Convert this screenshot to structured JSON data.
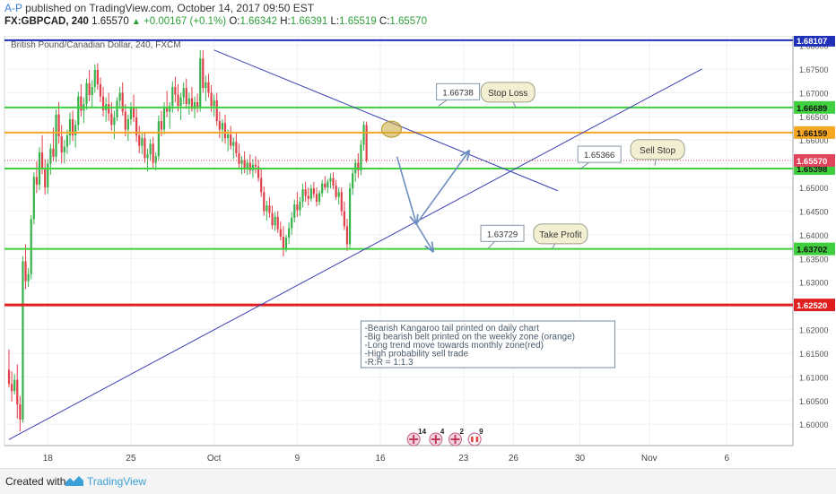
{
  "header": {
    "author": "A-P",
    "published": "published on TradingView.com, October 14, 2017 09:50 EST",
    "symbol": "FX:GBPCAD, 240",
    "last": "1.65570",
    "change_arrow": "▲",
    "change": "+0.00167 (+0.1%)",
    "o_label": "O:",
    "o_value": "1.66342",
    "h_label": "H:",
    "h_value": "1.66391",
    "l_label": "L:",
    "l_value": "1.65519",
    "c_label": "C:",
    "c_value": "1.65570"
  },
  "footer": {
    "created_with": "Created with",
    "brand": "TradingView"
  },
  "chart_data": {
    "type": "candlestick",
    "title": "British Pound/Canadian Dollar, 240, FXCM",
    "ylim": [
      1.5955,
      1.682
    ],
    "y_ticks": [
      "1.60000",
      "1.60500",
      "1.61000",
      "1.61500",
      "1.62000",
      "1.62500",
      "1.63000",
      "1.63500",
      "1.64000",
      "1.64500",
      "1.65000",
      "1.65500",
      "1.66000",
      "1.66500",
      "1.67000",
      "1.67500",
      "1.68000"
    ],
    "x_ticks": [
      {
        "label": "18",
        "i": 14
      },
      {
        "label": "25",
        "i": 44
      },
      {
        "label": "Oct",
        "i": 74
      },
      {
        "label": "9",
        "i": 104
      },
      {
        "label": "16",
        "i": 134
      },
      {
        "label": "23",
        "i": 164
      },
      {
        "label": "26",
        "i": 182
      },
      {
        "label": "30",
        "i": 206
      },
      {
        "label": "Nov",
        "i": 231
      },
      {
        "label": "6",
        "i": 259
      }
    ],
    "horizontal_levels": [
      {
        "price": 1.68107,
        "label": "1.68107",
        "color": "#1f2fb8",
        "width": 2
      },
      {
        "price": 1.66689,
        "label": "1.66689",
        "color": "#3fcf3f",
        "width": 2
      },
      {
        "price": 1.66159,
        "label": "1.66159",
        "color": "#f5a623",
        "width": 2
      },
      {
        "price": 1.65398,
        "label": "1.65398",
        "color": "#3fcf3f",
        "width": 2
      },
      {
        "price": 1.63702,
        "label": "1.63702",
        "color": "#3fcf3f",
        "width": 2
      },
      {
        "price": 1.6252,
        "label": "1.62520",
        "color": "#e02020",
        "width": 3
      }
    ],
    "last_price": {
      "price": 1.6557,
      "label": "1.65570",
      "color": "#e0445a"
    },
    "trend_lines": [
      {
        "from": {
          "i": 74,
          "p": 1.679
        },
        "to": {
          "i": 198,
          "p": 1.6493
        },
        "color": "#3b3fb0"
      },
      {
        "from": {
          "i": 0,
          "p": 1.5968
        },
        "to": {
          "i": 250,
          "p": 1.675
        },
        "color": "#3b3fb0"
      }
    ],
    "projection_arrows": [
      {
        "from": {
          "i": 140,
          "p": 1.6565
        },
        "to": {
          "i": 147,
          "p": 1.6423
        }
      },
      {
        "from": {
          "i": 147,
          "p": 1.6423
        },
        "to": {
          "i": 166,
          "p": 1.6577
        }
      },
      {
        "from": {
          "i": 147,
          "p": 1.6423
        },
        "to": {
          "i": 153,
          "p": 1.6365
        }
      }
    ],
    "callouts": [
      {
        "text": "1.66738",
        "style": "box",
        "at": {
          "i": 162,
          "p": 1.6702
        },
        "anchor": {
          "i": 155,
          "p": 1.6672
        }
      },
      {
        "text": "Stop Loss",
        "style": "bubble",
        "at": {
          "i": 180,
          "p": 1.6701
        },
        "anchor": {
          "i": 183,
          "p": 1.6668
        }
      },
      {
        "text": "1.65366",
        "style": "box",
        "at": {
          "i": 213,
          "p": 1.657
        },
        "anchor": {
          "i": 206,
          "p": 1.6538
        }
      },
      {
        "text": "Sell Stop",
        "style": "bubble",
        "at": {
          "i": 234,
          "p": 1.658
        },
        "anchor": {
          "i": 233,
          "p": 1.6546
        }
      },
      {
        "text": "1.63729",
        "style": "box",
        "at": {
          "i": 178,
          "p": 1.6403
        },
        "anchor": {
          "i": 173,
          "p": 1.6372
        }
      },
      {
        "text": "Take Profit",
        "style": "bubble",
        "at": {
          "i": 199,
          "p": 1.6402
        },
        "anchor": {
          "i": 196,
          "p": 1.6371
        }
      }
    ],
    "note": {
      "lines": [
        "-Bearish Kangaroo tail printed on daily chart",
        "-Big bearish belt printed on the weekly zone (orange)",
        "-Long trend move towards monthly zone(red)",
        "-High probability sell trade",
        "-R:R = 1:1.3"
      ],
      "at": {
        "i": 127,
        "p": 1.6218
      }
    },
    "highlight_circle": {
      "i": 138,
      "p": 1.6623
    },
    "event_flags": [
      {
        "count": "14",
        "i": 146,
        "kind": "uk"
      },
      {
        "count": "4",
        "i": 154,
        "kind": "uk"
      },
      {
        "count": "2",
        "i": 161,
        "kind": "uk"
      },
      {
        "count": "9",
        "i": 168,
        "kind": "ca"
      }
    ],
    "candles_ohlc": [
      [
        1.6115,
        1.6158,
        1.6078,
        1.6085
      ],
      [
        1.6085,
        1.6112,
        1.6048,
        1.607
      ],
      [
        1.607,
        1.6106,
        1.6063,
        1.6094
      ],
      [
        1.6094,
        1.6126,
        1.6012,
        1.6042
      ],
      [
        1.6042,
        1.606,
        1.5985,
        1.601
      ],
      [
        1.601,
        1.6355,
        1.6004,
        1.6344
      ],
      [
        1.6344,
        1.638,
        1.6285,
        1.6302
      ],
      [
        1.6302,
        1.633,
        1.629,
        1.6317
      ],
      [
        1.6317,
        1.6442,
        1.6306,
        1.6433
      ],
      [
        1.6433,
        1.6532,
        1.6422,
        1.6522
      ],
      [
        1.6522,
        1.6555,
        1.6488,
        1.6506
      ],
      [
        1.6506,
        1.6585,
        1.6494,
        1.6574
      ],
      [
        1.6574,
        1.661,
        1.6528,
        1.654
      ],
      [
        1.654,
        1.656,
        1.6485,
        1.65
      ],
      [
        1.65,
        1.656,
        1.6486,
        1.655
      ],
      [
        1.655,
        1.6592,
        1.6527,
        1.6582
      ],
      [
        1.6582,
        1.6626,
        1.6555,
        1.6565
      ],
      [
        1.6565,
        1.6665,
        1.6553,
        1.6654
      ],
      [
        1.6654,
        1.668,
        1.6592,
        1.6608
      ],
      [
        1.6608,
        1.6632,
        1.6551,
        1.6574
      ],
      [
        1.6574,
        1.66,
        1.6551,
        1.6586
      ],
      [
        1.6586,
        1.6622,
        1.6571,
        1.661
      ],
      [
        1.661,
        1.6658,
        1.659,
        1.6644
      ],
      [
        1.6644,
        1.6662,
        1.6598,
        1.661
      ],
      [
        1.661,
        1.6642,
        1.6584,
        1.6632
      ],
      [
        1.6632,
        1.6702,
        1.662,
        1.6692
      ],
      [
        1.6692,
        1.6718,
        1.665,
        1.6662
      ],
      [
        1.6662,
        1.669,
        1.6636,
        1.6676
      ],
      [
        1.6676,
        1.673,
        1.6664,
        1.672
      ],
      [
        1.672,
        1.6748,
        1.6682,
        1.6695
      ],
      [
        1.6695,
        1.6726,
        1.6668,
        1.6712
      ],
      [
        1.6712,
        1.676,
        1.67,
        1.6748
      ],
      [
        1.6748,
        1.6762,
        1.6706,
        1.6718
      ],
      [
        1.6718,
        1.6732,
        1.668,
        1.6692
      ],
      [
        1.6692,
        1.6712,
        1.665,
        1.6663
      ],
      [
        1.6663,
        1.669,
        1.6638,
        1.6676
      ],
      [
        1.6676,
        1.67,
        1.664,
        1.6656
      ],
      [
        1.6656,
        1.668,
        1.662,
        1.6632
      ],
      [
        1.6632,
        1.6662,
        1.6602,
        1.6648
      ],
      [
        1.6648,
        1.669,
        1.664,
        1.6683
      ],
      [
        1.6683,
        1.6712,
        1.6666,
        1.67
      ],
      [
        1.67,
        1.6722,
        1.6652,
        1.666
      ],
      [
        1.666,
        1.6676,
        1.6608,
        1.6622
      ],
      [
        1.6622,
        1.6654,
        1.6598,
        1.6644
      ],
      [
        1.6644,
        1.668,
        1.6632,
        1.6668
      ],
      [
        1.6668,
        1.6696,
        1.6638,
        1.6648
      ],
      [
        1.6648,
        1.6668,
        1.6596,
        1.661
      ],
      [
        1.661,
        1.663,
        1.6572,
        1.6588
      ],
      [
        1.6588,
        1.6614,
        1.657,
        1.6604
      ],
      [
        1.6604,
        1.6616,
        1.6552,
        1.6562
      ],
      [
        1.6562,
        1.6582,
        1.6534,
        1.657
      ],
      [
        1.657,
        1.6602,
        1.6556,
        1.6592
      ],
      [
        1.6592,
        1.6606,
        1.6538,
        1.6552
      ],
      [
        1.6552,
        1.6574,
        1.6536,
        1.6566
      ],
      [
        1.6566,
        1.6652,
        1.6558,
        1.664
      ],
      [
        1.664,
        1.6662,
        1.6608,
        1.6622
      ],
      [
        1.6622,
        1.668,
        1.6612,
        1.667
      ],
      [
        1.667,
        1.6704,
        1.6648,
        1.666
      ],
      [
        1.666,
        1.668,
        1.6624,
        1.6672
      ],
      [
        1.6672,
        1.6724,
        1.6658,
        1.6712
      ],
      [
        1.6712,
        1.6734,
        1.668,
        1.6696
      ],
      [
        1.6696,
        1.6718,
        1.666,
        1.6672
      ],
      [
        1.6672,
        1.67,
        1.6642,
        1.669
      ],
      [
        1.669,
        1.6722,
        1.6676,
        1.671
      ],
      [
        1.671,
        1.673,
        1.6666,
        1.6676
      ],
      [
        1.6676,
        1.67,
        1.6654,
        1.6688
      ],
      [
        1.6688,
        1.6712,
        1.666,
        1.6666
      ],
      [
        1.6666,
        1.6692,
        1.6646,
        1.668
      ],
      [
        1.668,
        1.6698,
        1.6658,
        1.6668
      ],
      [
        1.6668,
        1.679,
        1.666,
        1.6772
      ],
      [
        1.6772,
        1.679,
        1.67,
        1.671
      ],
      [
        1.671,
        1.6736,
        1.6682,
        1.6722
      ],
      [
        1.6722,
        1.674,
        1.669,
        1.67
      ],
      [
        1.67,
        1.6716,
        1.666,
        1.6672
      ],
      [
        1.6672,
        1.6696,
        1.665,
        1.6684
      ],
      [
        1.6684,
        1.67,
        1.663,
        1.664
      ],
      [
        1.664,
        1.666,
        1.6604,
        1.6622
      ],
      [
        1.6622,
        1.6644,
        1.6596,
        1.6636
      ],
      [
        1.6636,
        1.6654,
        1.6592,
        1.6604
      ],
      [
        1.6604,
        1.6622,
        1.6576,
        1.6612
      ],
      [
        1.6612,
        1.663,
        1.658,
        1.6588
      ],
      [
        1.6588,
        1.6606,
        1.656,
        1.6596
      ],
      [
        1.6596,
        1.6614,
        1.6564,
        1.6572
      ],
      [
        1.6572,
        1.6592,
        1.654,
        1.655
      ],
      [
        1.655,
        1.6566,
        1.6528,
        1.6558
      ],
      [
        1.6558,
        1.6576,
        1.653,
        1.654
      ],
      [
        1.654,
        1.656,
        1.6526,
        1.6552
      ],
      [
        1.6552,
        1.657,
        1.6528,
        1.6536
      ],
      [
        1.6536,
        1.656,
        1.652,
        1.6548
      ],
      [
        1.6548,
        1.6566,
        1.653,
        1.6544
      ],
      [
        1.6544,
        1.6558,
        1.6512,
        1.652
      ],
      [
        1.652,
        1.6538,
        1.648,
        1.649
      ],
      [
        1.649,
        1.6502,
        1.644,
        1.645
      ],
      [
        1.645,
        1.6472,
        1.643,
        1.6462
      ],
      [
        1.6462,
        1.648,
        1.6436,
        1.6446
      ],
      [
        1.6446,
        1.6462,
        1.6412,
        1.642
      ],
      [
        1.642,
        1.6448,
        1.6408,
        1.6438
      ],
      [
        1.6438,
        1.645,
        1.6404,
        1.6412
      ],
      [
        1.6412,
        1.6428,
        1.6388,
        1.6396
      ],
      [
        1.6396,
        1.6418,
        1.6354,
        1.6372
      ],
      [
        1.6372,
        1.64,
        1.6364,
        1.6394
      ],
      [
        1.6394,
        1.6426,
        1.638,
        1.6414
      ],
      [
        1.6414,
        1.6448,
        1.64,
        1.6436
      ],
      [
        1.6436,
        1.6474,
        1.6426,
        1.6464
      ],
      [
        1.6464,
        1.649,
        1.6438,
        1.6452
      ],
      [
        1.6452,
        1.648,
        1.644,
        1.647
      ],
      [
        1.647,
        1.6508,
        1.6458,
        1.6496
      ],
      [
        1.6496,
        1.6512,
        1.647,
        1.6482
      ],
      [
        1.6482,
        1.65,
        1.6462,
        1.6476
      ],
      [
        1.6476,
        1.6506,
        1.647,
        1.6498
      ],
      [
        1.6498,
        1.6512,
        1.6478,
        1.6486
      ],
      [
        1.6486,
        1.65,
        1.646,
        1.647
      ],
      [
        1.647,
        1.6494,
        1.6462,
        1.6488
      ],
      [
        1.6488,
        1.6516,
        1.648,
        1.6508
      ],
      [
        1.6508,
        1.6524,
        1.6494,
        1.65
      ],
      [
        1.65,
        1.6518,
        1.6488,
        1.6512
      ],
      [
        1.6512,
        1.653,
        1.6498,
        1.652
      ],
      [
        1.652,
        1.6532,
        1.6496,
        1.6504
      ],
      [
        1.6504,
        1.6516,
        1.6474,
        1.648
      ],
      [
        1.648,
        1.65,
        1.6464,
        1.649
      ],
      [
        1.649,
        1.65,
        1.644,
        1.645
      ],
      [
        1.645,
        1.647,
        1.641,
        1.6418
      ],
      [
        1.6418,
        1.6434,
        1.6366,
        1.638
      ],
      [
        1.638,
        1.651,
        1.637,
        1.6498
      ],
      [
        1.6498,
        1.654,
        1.6484,
        1.653
      ],
      [
        1.653,
        1.656,
        1.6512,
        1.6552
      ],
      [
        1.6552,
        1.6572,
        1.652,
        1.6536
      ],
      [
        1.6536,
        1.66,
        1.6526,
        1.659
      ],
      [
        1.659,
        1.664,
        1.6578,
        1.6632
      ],
      [
        1.6632,
        1.6639,
        1.6552,
        1.6557
      ]
    ]
  }
}
